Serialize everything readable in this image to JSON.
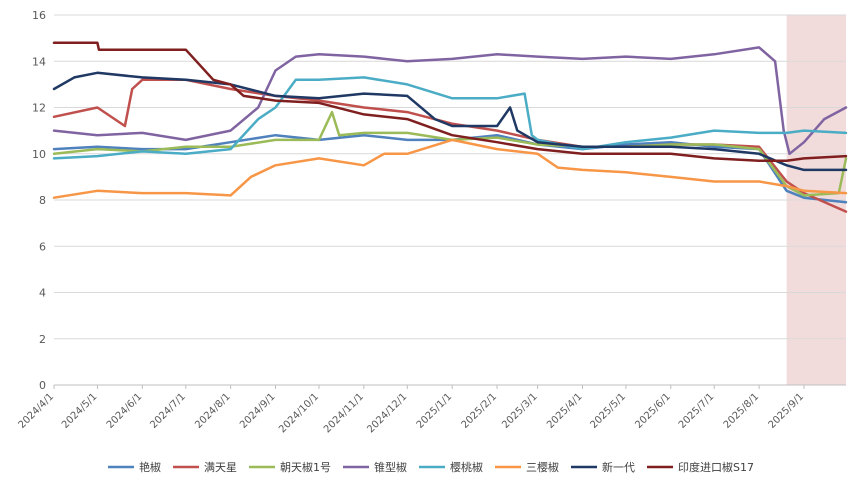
{
  "chart_data": {
    "type": "line",
    "title": "",
    "xlabel": "",
    "ylabel": "",
    "ylim": [
      0,
      16
    ],
    "yticks": [
      0,
      2,
      4,
      6,
      8,
      10,
      12,
      14,
      16
    ],
    "xlim": [
      "2024-04-01",
      "2025-09-30"
    ],
    "xticks": [
      "2024/4/1",
      "2024/5/1",
      "2024/6/1",
      "2024/7/1",
      "2024/8/1",
      "2024/9/1",
      "2024/10/1",
      "2024/11/1",
      "2024/12/1",
      "2025/1/1",
      "2025/2/1",
      "2025/3/1",
      "2025/4/1",
      "2025/5/1",
      "2025/6/1",
      "2025/7/1",
      "2025/8/1",
      "2025/9/1"
    ],
    "grid": "horizontal",
    "legend_position": "bottom",
    "shaded_region": {
      "from": "2025-08-20",
      "to": "2025-09-30",
      "color": "#f2dcdb"
    },
    "series": [
      {
        "name": "艳椒",
        "color": "#4f81bd",
        "points": [
          [
            "2024-04-01",
            10.2
          ],
          [
            "2024-05-01",
            10.3
          ],
          [
            "2024-06-01",
            10.2
          ],
          [
            "2024-07-01",
            10.2
          ],
          [
            "2024-08-01",
            10.5
          ],
          [
            "2024-09-01",
            10.8
          ],
          [
            "2024-10-01",
            10.6
          ],
          [
            "2024-11-01",
            10.8
          ],
          [
            "2024-12-01",
            10.6
          ],
          [
            "2025-01-01",
            10.6
          ],
          [
            "2025-02-01",
            10.8
          ],
          [
            "2025-03-01",
            10.4
          ],
          [
            "2025-04-01",
            10.2
          ],
          [
            "2025-05-01",
            10.4
          ],
          [
            "2025-06-01",
            10.5
          ],
          [
            "2025-07-01",
            10.3
          ],
          [
            "2025-08-01",
            10.2
          ],
          [
            "2025-08-20",
            8.4
          ],
          [
            "2025-09-01",
            8.1
          ],
          [
            "2025-09-30",
            7.9
          ]
        ]
      },
      {
        "name": "满天星",
        "color": "#c0504d",
        "points": [
          [
            "2024-04-01",
            11.6
          ],
          [
            "2024-05-01",
            12.0
          ],
          [
            "2024-05-20",
            11.2
          ],
          [
            "2024-05-25",
            12.8
          ],
          [
            "2024-06-01",
            13.2
          ],
          [
            "2024-07-01",
            13.2
          ],
          [
            "2024-08-01",
            12.8
          ],
          [
            "2024-09-01",
            12.5
          ],
          [
            "2024-10-01",
            12.3
          ],
          [
            "2024-11-01",
            12.0
          ],
          [
            "2024-12-01",
            11.8
          ],
          [
            "2025-01-01",
            11.3
          ],
          [
            "2025-02-01",
            11.0
          ],
          [
            "2025-03-01",
            10.6
          ],
          [
            "2025-04-01",
            10.3
          ],
          [
            "2025-05-01",
            10.3
          ],
          [
            "2025-06-01",
            10.4
          ],
          [
            "2025-07-01",
            10.4
          ],
          [
            "2025-08-01",
            10.3
          ],
          [
            "2025-08-20",
            8.8
          ],
          [
            "2025-09-01",
            8.3
          ],
          [
            "2025-09-30",
            7.5
          ]
        ]
      },
      {
        "name": "朝天椒1号",
        "color": "#9bbb59",
        "points": [
          [
            "2024-04-01",
            10.0
          ],
          [
            "2024-05-01",
            10.2
          ],
          [
            "2024-06-01",
            10.1
          ],
          [
            "2024-07-01",
            10.3
          ],
          [
            "2024-08-01",
            10.3
          ],
          [
            "2024-09-01",
            10.6
          ],
          [
            "2024-10-01",
            10.6
          ],
          [
            "2024-10-10",
            11.8
          ],
          [
            "2024-10-15",
            10.8
          ],
          [
            "2024-11-01",
            10.9
          ],
          [
            "2024-12-01",
            10.9
          ],
          [
            "2025-01-01",
            10.6
          ],
          [
            "2025-02-01",
            10.7
          ],
          [
            "2025-03-01",
            10.4
          ],
          [
            "2025-04-01",
            10.3
          ],
          [
            "2025-05-01",
            10.3
          ],
          [
            "2025-06-01",
            10.4
          ],
          [
            "2025-07-01",
            10.4
          ],
          [
            "2025-08-01",
            10.2
          ],
          [
            "2025-08-20",
            8.6
          ],
          [
            "2025-09-01",
            8.2
          ],
          [
            "2025-09-25",
            8.3
          ],
          [
            "2025-09-30",
            9.8
          ]
        ]
      },
      {
        "name": "锥型椒",
        "color": "#8064a2",
        "points": [
          [
            "2024-04-01",
            11.0
          ],
          [
            "2024-05-01",
            10.8
          ],
          [
            "2024-06-01",
            10.9
          ],
          [
            "2024-07-01",
            10.6
          ],
          [
            "2024-08-01",
            11.0
          ],
          [
            "2024-08-20",
            12.0
          ],
          [
            "2024-09-01",
            13.6
          ],
          [
            "2024-09-15",
            14.2
          ],
          [
            "2024-10-01",
            14.3
          ],
          [
            "2024-11-01",
            14.2
          ],
          [
            "2024-12-01",
            14.0
          ],
          [
            "2025-01-01",
            14.1
          ],
          [
            "2025-02-01",
            14.3
          ],
          [
            "2025-03-01",
            14.2
          ],
          [
            "2025-04-01",
            14.1
          ],
          [
            "2025-05-01",
            14.2
          ],
          [
            "2025-06-01",
            14.1
          ],
          [
            "2025-07-01",
            14.3
          ],
          [
            "2025-08-01",
            14.6
          ],
          [
            "2025-08-12",
            14.0
          ],
          [
            "2025-08-18",
            11.0
          ],
          [
            "2025-08-22",
            10.0
          ],
          [
            "2025-09-01",
            10.5
          ],
          [
            "2025-09-15",
            11.5
          ],
          [
            "2025-09-30",
            12.0
          ]
        ]
      },
      {
        "name": "樱桃椒",
        "color": "#4bacc6",
        "points": [
          [
            "2024-04-01",
            9.8
          ],
          [
            "2024-05-01",
            9.9
          ],
          [
            "2024-06-01",
            10.1
          ],
          [
            "2024-07-01",
            10.0
          ],
          [
            "2024-08-01",
            10.2
          ],
          [
            "2024-08-20",
            11.5
          ],
          [
            "2024-09-01",
            12.0
          ],
          [
            "2024-09-15",
            13.2
          ],
          [
            "2024-10-01",
            13.2
          ],
          [
            "2024-11-01",
            13.3
          ],
          [
            "2024-12-01",
            13.0
          ],
          [
            "2025-01-01",
            12.4
          ],
          [
            "2025-02-01",
            12.4
          ],
          [
            "2025-02-20",
            12.6
          ],
          [
            "2025-02-25",
            10.8
          ],
          [
            "2025-03-01",
            10.6
          ],
          [
            "2025-04-01",
            10.2
          ],
          [
            "2025-05-01",
            10.5
          ],
          [
            "2025-06-01",
            10.7
          ],
          [
            "2025-07-01",
            11.0
          ],
          [
            "2025-08-01",
            10.9
          ],
          [
            "2025-08-20",
            10.9
          ],
          [
            "2025-09-01",
            11.0
          ],
          [
            "2025-09-30",
            10.9
          ]
        ]
      },
      {
        "name": "三樱椒",
        "color": "#f79646",
        "points": [
          [
            "2024-04-01",
            8.1
          ],
          [
            "2024-05-01",
            8.4
          ],
          [
            "2024-06-01",
            8.3
          ],
          [
            "2024-07-01",
            8.3
          ],
          [
            "2024-08-01",
            8.2
          ],
          [
            "2024-08-15",
            9.0
          ],
          [
            "2024-09-01",
            9.5
          ],
          [
            "2024-10-01",
            9.8
          ],
          [
            "2024-11-01",
            9.5
          ],
          [
            "2024-11-15",
            10.0
          ],
          [
            "2024-12-01",
            10.0
          ],
          [
            "2025-01-01",
            10.6
          ],
          [
            "2025-02-01",
            10.2
          ],
          [
            "2025-03-01",
            10.0
          ],
          [
            "2025-03-15",
            9.4
          ],
          [
            "2025-04-01",
            9.3
          ],
          [
            "2025-05-01",
            9.2
          ],
          [
            "2025-06-01",
            9.0
          ],
          [
            "2025-07-01",
            8.8
          ],
          [
            "2025-08-01",
            8.8
          ],
          [
            "2025-08-20",
            8.6
          ],
          [
            "2025-09-01",
            8.4
          ],
          [
            "2025-09-30",
            8.3
          ]
        ]
      },
      {
        "name": "新一代",
        "color": "#1f3864",
        "points": [
          [
            "2024-04-01",
            12.8
          ],
          [
            "2024-04-15",
            13.3
          ],
          [
            "2024-05-01",
            13.5
          ],
          [
            "2024-06-01",
            13.3
          ],
          [
            "2024-07-01",
            13.2
          ],
          [
            "2024-08-01",
            13.0
          ],
          [
            "2024-09-01",
            12.5
          ],
          [
            "2024-10-01",
            12.4
          ],
          [
            "2024-11-01",
            12.6
          ],
          [
            "2024-12-01",
            12.5
          ],
          [
            "2024-12-20",
            11.5
          ],
          [
            "2025-01-01",
            11.2
          ],
          [
            "2025-02-01",
            11.2
          ],
          [
            "2025-02-10",
            12.0
          ],
          [
            "2025-02-15",
            11.0
          ],
          [
            "2025-03-01",
            10.5
          ],
          [
            "2025-04-01",
            10.3
          ],
          [
            "2025-05-01",
            10.3
          ],
          [
            "2025-06-01",
            10.3
          ],
          [
            "2025-07-01",
            10.2
          ],
          [
            "2025-08-01",
            10.0
          ],
          [
            "2025-08-20",
            9.5
          ],
          [
            "2025-09-01",
            9.3
          ],
          [
            "2025-09-30",
            9.3
          ]
        ]
      },
      {
        "name": "印度进口椒S17",
        "color": "#7f1f1f",
        "points": [
          [
            "2024-04-01",
            14.8
          ],
          [
            "2024-05-01",
            14.8
          ],
          [
            "2024-05-02",
            14.5
          ],
          [
            "2024-07-01",
            14.5
          ],
          [
            "2024-07-20",
            13.2
          ],
          [
            "2024-08-01",
            13.0
          ],
          [
            "2024-08-10",
            12.5
          ],
          [
            "2024-09-01",
            12.3
          ],
          [
            "2024-10-01",
            12.2
          ],
          [
            "2024-11-01",
            11.7
          ],
          [
            "2024-12-01",
            11.5
          ],
          [
            "2025-01-01",
            10.8
          ],
          [
            "2025-02-01",
            10.5
          ],
          [
            "2025-03-01",
            10.2
          ],
          [
            "2025-04-01",
            10.0
          ],
          [
            "2025-05-01",
            10.0
          ],
          [
            "2025-06-01",
            10.0
          ],
          [
            "2025-07-01",
            9.8
          ],
          [
            "2025-08-01",
            9.7
          ],
          [
            "2025-08-20",
            9.7
          ],
          [
            "2025-09-01",
            9.8
          ],
          [
            "2025-09-30",
            9.9
          ]
        ]
      }
    ]
  }
}
